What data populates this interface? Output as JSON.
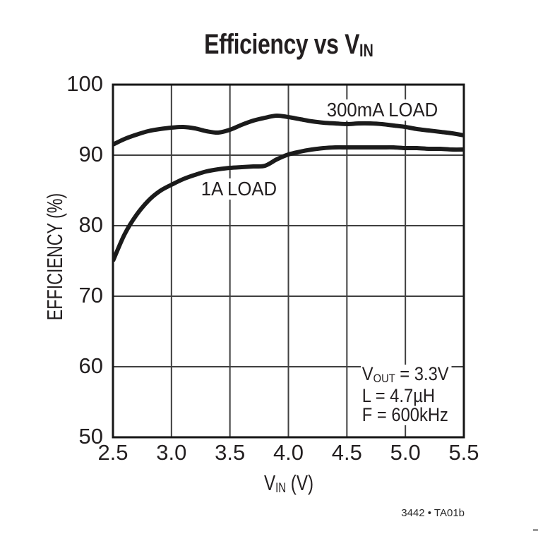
{
  "figure": {
    "title_pre": "Efficiency vs V",
    "title_sub": "IN",
    "ylabel": "EFFICIENCY (%)",
    "xlabel_pre": "V",
    "xlabel_sub": "IN",
    "xlabel_post": " (V)",
    "series_labels": [
      "300mA LOAD",
      "1A LOAD"
    ],
    "annotations": [
      {
        "pre": "V",
        "sub": "OUT",
        "post": " = 3.3V"
      },
      {
        "pre": "L = 4.7µH",
        "sub": "",
        "post": ""
      },
      {
        "pre": "F = 600kHz",
        "sub": "",
        "post": ""
      }
    ],
    "figure_number": "3442 • TA01b",
    "colors": {
      "ink": "#231f20",
      "grid": "#3f3f3f",
      "frame": "#161616",
      "curve": "#1b1b1b",
      "background": "#ffffff"
    }
  },
  "chart_data": {
    "type": "line",
    "title": "Efficiency vs VIN",
    "xlabel": "VIN (V)",
    "ylabel": "EFFICIENCY (%)",
    "xlim": [
      2.5,
      5.5
    ],
    "ylim": [
      50,
      100
    ],
    "xticks": [
      2.5,
      3.0,
      3.5,
      4.0,
      4.5,
      5.0,
      5.5
    ],
    "xtick_labels": [
      "2.5",
      "3.0",
      "3.5",
      "4.0",
      "4.5",
      "5.0",
      "5.5"
    ],
    "yticks": [
      50,
      60,
      70,
      80,
      90,
      100
    ],
    "ytick_labels": [
      "50",
      "60",
      "70",
      "80",
      "90",
      "100"
    ],
    "grid": true,
    "legend_position": "inline-curve-labels",
    "annotations_text": [
      "VOUT = 3.3V",
      "L = 4.7µH",
      "F = 600kHz"
    ],
    "series": [
      {
        "name": "300mA LOAD",
        "x": [
          2.5,
          2.6,
          2.7,
          2.8,
          2.9,
          3.0,
          3.1,
          3.2,
          3.3,
          3.4,
          3.5,
          3.6,
          3.7,
          3.8,
          3.9,
          4.0,
          4.1,
          4.2,
          4.3,
          4.4,
          4.5,
          4.6,
          4.7,
          4.8,
          4.9,
          5.0,
          5.1,
          5.2,
          5.3,
          5.4,
          5.5
        ],
        "y": [
          91.5,
          92.3,
          92.9,
          93.4,
          93.7,
          93.9,
          94.0,
          93.8,
          93.4,
          93.2,
          93.6,
          94.3,
          94.9,
          95.3,
          95.6,
          95.4,
          95.1,
          94.8,
          94.6,
          94.5,
          94.4,
          94.5,
          94.5,
          94.4,
          94.2,
          94.0,
          93.7,
          93.5,
          93.3,
          93.1,
          92.8
        ]
      },
      {
        "name": "1A LOAD",
        "x": [
          2.5,
          2.6,
          2.7,
          2.8,
          2.9,
          3.0,
          3.1,
          3.2,
          3.3,
          3.4,
          3.5,
          3.6,
          3.7,
          3.8,
          3.9,
          4.0,
          4.1,
          4.2,
          4.3,
          4.4,
          4.5,
          4.6,
          4.7,
          4.8,
          4.9,
          5.0,
          5.1,
          5.2,
          5.3,
          5.4,
          5.5
        ],
        "y": [
          75.0,
          78.8,
          81.5,
          83.5,
          84.9,
          85.8,
          86.6,
          87.2,
          87.7,
          88.0,
          88.2,
          88.3,
          88.4,
          88.5,
          89.4,
          90.1,
          90.5,
          90.8,
          91.0,
          91.1,
          91.1,
          91.1,
          91.1,
          91.1,
          91.1,
          91.0,
          91.0,
          90.9,
          90.9,
          90.8,
          90.8
        ]
      }
    ]
  }
}
